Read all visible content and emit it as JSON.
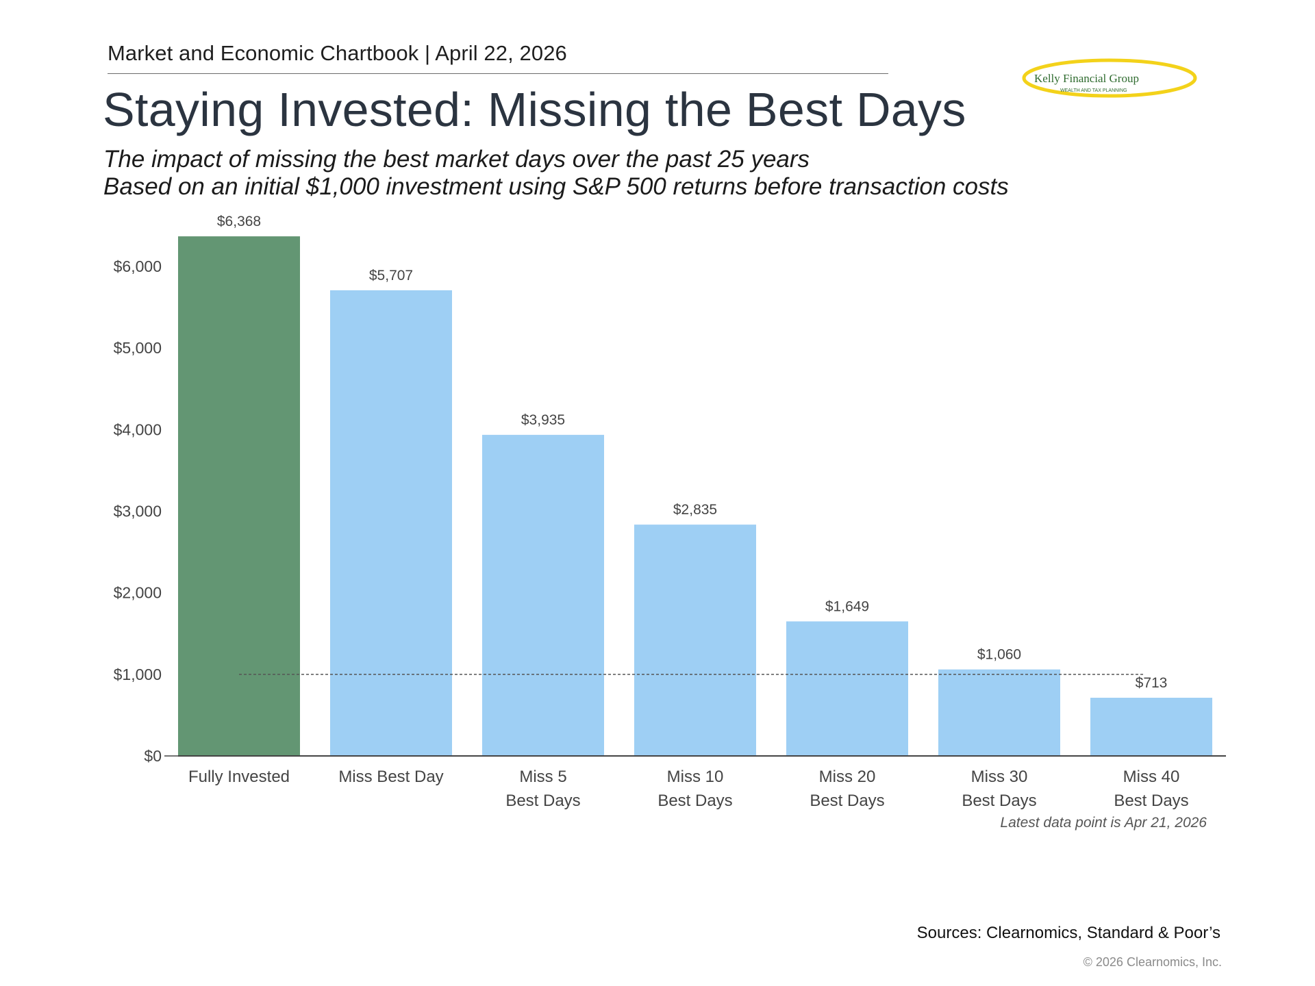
{
  "header": {
    "chartbook_line": "Market and Economic Chartbook | April 22, 2026",
    "title": "Staying Invested: Missing the Best Days",
    "subtitle_1": "The impact of missing the best market days over the past 25 years",
    "subtitle_2": "Based on an initial $1,000 investment using S&P 500 returns before transaction costs"
  },
  "logo": {
    "name": "Kelly Financial Group",
    "tagline": "WEALTH AND TAX PLANNING"
  },
  "chart_data": {
    "type": "bar",
    "categories": [
      [
        "Fully Invested"
      ],
      [
        "Miss Best Day"
      ],
      [
        "Miss 5",
        "Best Days"
      ],
      [
        "Miss 10",
        "Best Days"
      ],
      [
        "Miss 20",
        "Best Days"
      ],
      [
        "Miss 30",
        "Best Days"
      ],
      [
        "Miss 40",
        "Best Days"
      ]
    ],
    "values": [
      6368,
      5707,
      3935,
      2835,
      1649,
      1060,
      713
    ],
    "value_labels": [
      "$6,368",
      "$5,707",
      "$3,935",
      "$2,835",
      "$1,649",
      "$1,060",
      "$713"
    ],
    "bar_colors": [
      "#639673",
      "#9ecff4",
      "#9ecff4",
      "#9ecff4",
      "#9ecff4",
      "#9ecff4",
      "#9ecff4"
    ],
    "y_ticks": [
      0,
      1000,
      2000,
      3000,
      4000,
      5000,
      6000
    ],
    "y_tick_labels": [
      "$0",
      "$1,000",
      "$2,000",
      "$3,000",
      "$4,000",
      "$5,000",
      "$6,000"
    ],
    "ylim": [
      0,
      6600
    ],
    "reference_line": 1000,
    "grid": false,
    "legend": "none"
  },
  "footer": {
    "latest_note": "Latest data point is Apr 21, 2026",
    "sources": "Sources: Clearnomics, Standard & Poor’s",
    "copyright": "© 2026 Clearnomics, Inc."
  },
  "colors": {
    "title": "#2b3440",
    "highlight_bar": "#639673",
    "bar": "#9ecff4",
    "logo_swoosh": "#f3d21a",
    "logo_text": "#2f6b2f"
  }
}
